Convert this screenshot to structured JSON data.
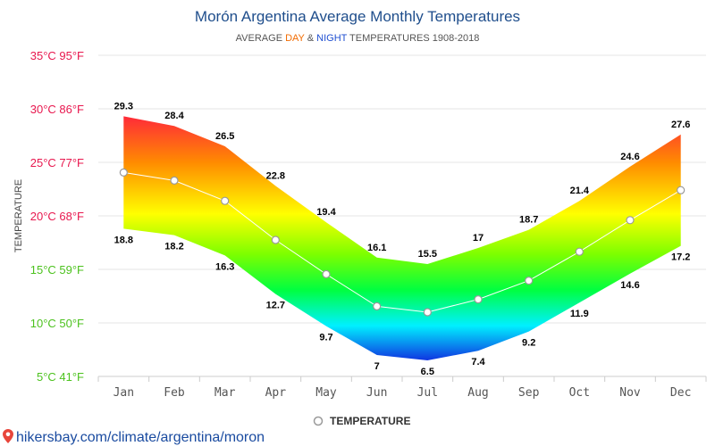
{
  "chart_data": {
    "type": "area",
    "title": "Morón Argentina Average Monthly Temperatures",
    "subtitle": {
      "prefix": "AVERAGE ",
      "day": "DAY",
      "amp": " & ",
      "night": "NIGHT",
      "suffix": " TEMPERATURES 1908-2018"
    },
    "ylabel": "TEMPERATURE",
    "categories": [
      "Jan",
      "Feb",
      "Mar",
      "Apr",
      "May",
      "Jun",
      "Jul",
      "Aug",
      "Sep",
      "Oct",
      "Nov",
      "Dec"
    ],
    "series": [
      {
        "name": "DAY",
        "values": [
          29.3,
          28.4,
          26.5,
          22.8,
          19.4,
          16.1,
          15.5,
          17,
          18.7,
          21.4,
          24.6,
          27.6
        ]
      },
      {
        "name": "NIGHT",
        "values": [
          18.8,
          18.2,
          16.3,
          12.7,
          9.7,
          7,
          6.5,
          7.4,
          9.2,
          11.9,
          14.6,
          17.2
        ]
      },
      {
        "name": "TEMPERATURE",
        "values": [
          24.05,
          23.3,
          21.4,
          17.75,
          14.55,
          11.55,
          11,
          12.2,
          13.95,
          16.65,
          19.6,
          22.4
        ]
      }
    ],
    "ylim": [
      5,
      35
    ],
    "yticks": [
      {
        "value": 35,
        "label": "35°C 95°F",
        "color": "#e8174e"
      },
      {
        "value": 30,
        "label": "30°C 86°F",
        "color": "#e8174e"
      },
      {
        "value": 25,
        "label": "25°C 77°F",
        "color": "#e8174e"
      },
      {
        "value": 20,
        "label": "20°C 68°F",
        "color": "#e8174e"
      },
      {
        "value": 15,
        "label": "15°C 59°F",
        "color": "#4cc21e"
      },
      {
        "value": 10,
        "label": "10°C 50°F",
        "color": "#4cc21e"
      },
      {
        "value": 5,
        "label": "5°C 41°F",
        "color": "#4cc21e"
      }
    ],
    "grid": true,
    "legend": {
      "label": "TEMPERATURE",
      "position": "bottom"
    },
    "colors": {
      "day_word": "#f26b00",
      "night_word": "#1f4fd1",
      "line": "#ffffff",
      "marker_stroke": "#9a9a9a"
    }
  },
  "source_link": "hikersbay.com/climate/argentina/moron",
  "icons": {
    "source": "location-pin-icon"
  }
}
